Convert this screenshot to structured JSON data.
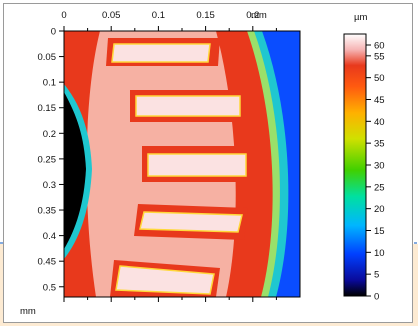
{
  "chart_data": {
    "type": "heatmap",
    "title": "",
    "xlabel": "mm",
    "ylabel": "mm",
    "x_ticks": [
      "0",
      "0.05",
      "0.1",
      "0.15",
      "0.2"
    ],
    "x_unit_label": "mm",
    "y_ticks": [
      "0",
      "0.05",
      "0.1",
      "0.15",
      "0.2",
      "0.25",
      "0.3",
      "0.35",
      "0.4",
      "0.45",
      "0.5"
    ],
    "y_bottom_label": "mm",
    "xlim": [
      0,
      0.25
    ],
    "ylim": [
      0,
      0.52
    ],
    "colorbar": {
      "unit": "µm",
      "min": 0,
      "max": 60,
      "ticks": [
        "0",
        "5",
        "10",
        "15",
        "20",
        "25",
        "30",
        "35",
        "40",
        "45",
        "50",
        "55",
        "60"
      ]
    },
    "description_values": {
      "ring_height_um": 50,
      "slot_floor_um": 60,
      "inner_hole_um": 0,
      "outer_background_um": 15
    },
    "colors": {
      "ring": "#e8391c",
      "slot": "#fbe2e2",
      "inner_hole": "#000000",
      "outer": "#1f8fff",
      "background_panel": "#fdebd3",
      "dashed_line": "#5b8fd6"
    }
  }
}
